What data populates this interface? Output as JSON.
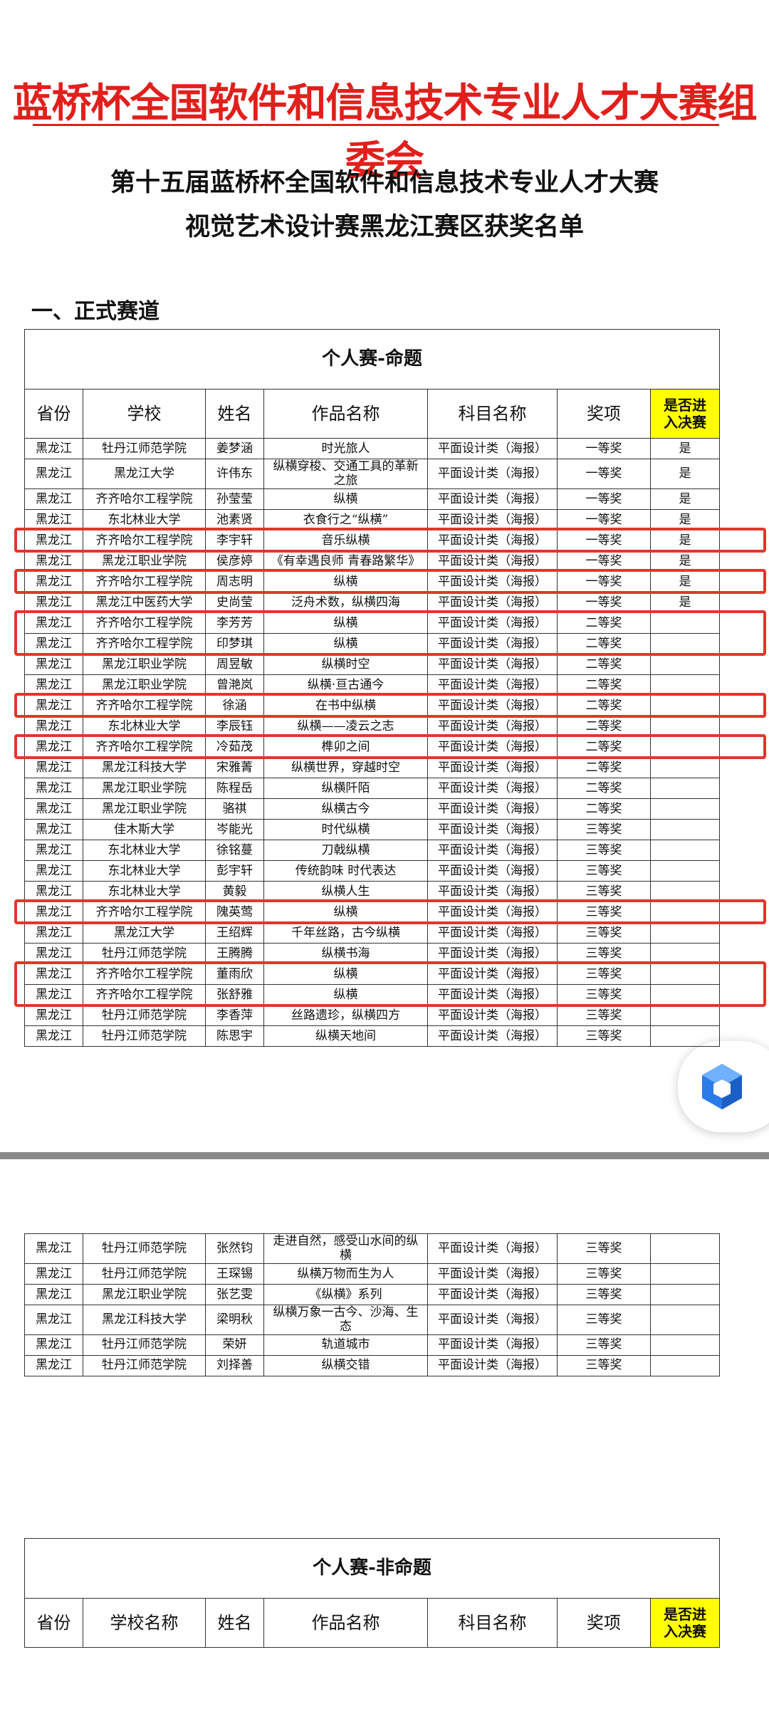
{
  "header": {
    "title": "蓝桥杯全国软件和信息技术专业人才大赛组委会",
    "subtitle": [
      "第十五届蓝桥杯全国软件和信息技术专业人才大赛",
      "视觉艺术设计赛黑龙江赛区获奖名单"
    ]
  },
  "section": "一、正式赛道",
  "tables": [
    {
      "title": "个人赛-命题",
      "columns": [
        "省份",
        "学校",
        "姓名",
        "作品名称",
        "科目名称",
        "奖项",
        "是否进入决赛"
      ],
      "rows": [
        {
          "cells": [
            "黑龙江",
            "牡丹江师范学院",
            "姜梦涵",
            "时光旅人",
            "平面设计类（海报）",
            "一等奖",
            "是"
          ]
        },
        {
          "cells": [
            "黑龙江",
            "黑龙江大学",
            "许伟东",
            "纵横穿梭、交通工具的革新之旅",
            "平面设计类（海报）",
            "一等奖",
            "是"
          ]
        },
        {
          "cells": [
            "黑龙江",
            "齐齐哈尔工程学院",
            "孙莹莹",
            "纵横",
            "平面设计类（海报）",
            "一等奖",
            "是"
          ]
        },
        {
          "cells": [
            "黑龙江",
            "东北林业大学",
            "池素贤",
            "衣食行之“纵横”",
            "平面设计类（海报）",
            "一等奖",
            "是"
          ]
        },
        {
          "cells": [
            "黑龙江",
            "齐齐哈尔工程学院",
            "李宇轩",
            "音乐纵横",
            "平面设计类（海报）",
            "一等奖",
            "是"
          ],
          "highlight": true
        },
        {
          "cells": [
            "黑龙江",
            "黑龙江职业学院",
            "侯彦婷",
            "《有幸遇良师 青春路繁华》",
            "平面设计类（海报）",
            "一等奖",
            "是"
          ]
        },
        {
          "cells": [
            "黑龙江",
            "齐齐哈尔工程学院",
            "周志明",
            "纵横",
            "平面设计类（海报）",
            "一等奖",
            "是"
          ],
          "highlight": true
        },
        {
          "cells": [
            "黑龙江",
            "黑龙江中医药大学",
            "史尚莹",
            "泛舟术数，纵横四海",
            "平面设计类（海报）",
            "一等奖",
            "是"
          ]
        },
        {
          "cells": [
            "黑龙江",
            "齐齐哈尔工程学院",
            "李芳芳",
            "纵横",
            "平面设计类（海报）",
            "二等奖",
            null
          ],
          "highlight": true
        },
        {
          "cells": [
            "黑龙江",
            "齐齐哈尔工程学院",
            "印梦琪",
            "纵横",
            "平面设计类（海报）",
            "二等奖",
            null
          ],
          "highlight": true
        },
        {
          "cells": [
            "黑龙江",
            "黑龙江职业学院",
            "周昱敏",
            "纵横时空",
            "平面设计类（海报）",
            "二等奖",
            null
          ]
        },
        {
          "cells": [
            "黑龙江",
            "黑龙江职业学院",
            "曾滟岚",
            "纵横·亘古通今",
            "平面设计类（海报）",
            "二等奖",
            null
          ]
        },
        {
          "cells": [
            "黑龙江",
            "齐齐哈尔工程学院",
            "徐涵",
            "在书中纵横",
            "平面设计类（海报）",
            "二等奖",
            null
          ],
          "highlight": true
        },
        {
          "cells": [
            "黑龙江",
            "东北林业大学",
            "李辰钰",
            "纵横——凌云之志",
            "平面设计类（海报）",
            "二等奖",
            null
          ]
        },
        {
          "cells": [
            "黑龙江",
            "齐齐哈尔工程学院",
            "冷茹茂",
            "榫卯之间",
            "平面设计类（海报）",
            "二等奖",
            null
          ],
          "highlight": true
        },
        {
          "cells": [
            "黑龙江",
            "黑龙江科技大学",
            "宋雅菁",
            "纵横世界，穿越时空",
            "平面设计类（海报）",
            "二等奖",
            null
          ]
        },
        {
          "cells": [
            "黑龙江",
            "黑龙江职业学院",
            "陈程岳",
            "纵横阡陌",
            "平面设计类（海报）",
            "二等奖",
            null
          ]
        },
        {
          "cells": [
            "黑龙江",
            "黑龙江职业学院",
            "骆祺",
            "纵横古今",
            "平面设计类（海报）",
            "二等奖",
            null
          ]
        },
        {
          "cells": [
            "黑龙江",
            "佳木斯大学",
            "岑能光",
            "时代纵横",
            "平面设计类（海报）",
            "三等奖",
            null
          ]
        },
        {
          "cells": [
            "黑龙江",
            "东北林业大学",
            "徐铭蔓",
            "刀戟纵横",
            "平面设计类（海报）",
            "三等奖",
            null
          ]
        },
        {
          "cells": [
            "黑龙江",
            "东北林业大学",
            "彭宇轩",
            "传统韵味 时代表达",
            "平面设计类（海报）",
            "三等奖",
            null
          ]
        },
        {
          "cells": [
            "黑龙江",
            "东北林业大学",
            "黄毅",
            "纵横人生",
            "平面设计类（海报）",
            "三等奖",
            null
          ]
        },
        {
          "cells": [
            "黑龙江",
            "齐齐哈尔工程学院",
            "隗英莺",
            "纵横",
            "平面设计类（海报）",
            "三等奖",
            null
          ],
          "highlight": true
        },
        {
          "cells": [
            "黑龙江",
            "黑龙江大学",
            "王绍辉",
            "千年丝路，古今纵横",
            "平面设计类（海报）",
            "三等奖",
            null
          ]
        },
        {
          "cells": [
            "黑龙江",
            "牡丹江师范学院",
            "王腾腾",
            "纵横书海",
            "平面设计类（海报）",
            "三等奖",
            null
          ]
        },
        {
          "cells": [
            "黑龙江",
            "齐齐哈尔工程学院",
            "董雨欣",
            "纵横",
            "平面设计类（海报）",
            "三等奖",
            null
          ],
          "highlight": true
        },
        {
          "cells": [
            "黑龙江",
            "齐齐哈尔工程学院",
            "张舒雅",
            "纵横",
            "平面设计类（海报）",
            "三等奖",
            null
          ],
          "highlight": true
        },
        {
          "cells": [
            "黑龙江",
            "牡丹江师范学院",
            "李香萍",
            "丝路遗珍，纵横四方",
            "平面设计类（海报）",
            "三等奖",
            null
          ]
        },
        {
          "cells": [
            "黑龙江",
            "牡丹江师范学院",
            "陈思宇",
            "纵横天地间",
            "平面设计类（海报）",
            "三等奖",
            null
          ]
        }
      ]
    },
    {
      "rows": [
        {
          "cells": [
            "黑龙江",
            "牡丹江师范学院",
            "张然钧",
            "走进自然，感受山水间的纵横",
            "平面设计类（海报）",
            "三等奖",
            null
          ]
        },
        {
          "cells": [
            "黑龙江",
            "牡丹江师范学院",
            "王琛锡",
            "纵横万物而生为人",
            "平面设计类（海报）",
            "三等奖",
            null
          ]
        },
        {
          "cells": [
            "黑龙江",
            "黑龙江职业学院",
            "张艺雯",
            "《纵横》系列",
            "平面设计类（海报）",
            "三等奖",
            null
          ]
        },
        {
          "cells": [
            "黑龙江",
            "黑龙江科技大学",
            "梁明秋",
            "纵横万象一古今、沙海、生态",
            "平面设计类（海报）",
            "三等奖",
            null
          ]
        },
        {
          "cells": [
            "黑龙江",
            "牡丹江师范学院",
            "荣妍",
            "轨道城市",
            "平面设计类（海报）",
            "三等奖",
            null
          ]
        },
        {
          "cells": [
            "黑龙江",
            "牡丹江师范学院",
            "刘择善",
            "纵横交错",
            "平面设计类（海报）",
            "三等奖",
            null
          ]
        }
      ]
    },
    {
      "title": "个人赛-非命题",
      "columns": [
        "省份",
        "学校名称",
        "姓名",
        "作品名称",
        "科目名称",
        "奖项",
        "是否进入决赛"
      ],
      "rows": []
    }
  ]
}
